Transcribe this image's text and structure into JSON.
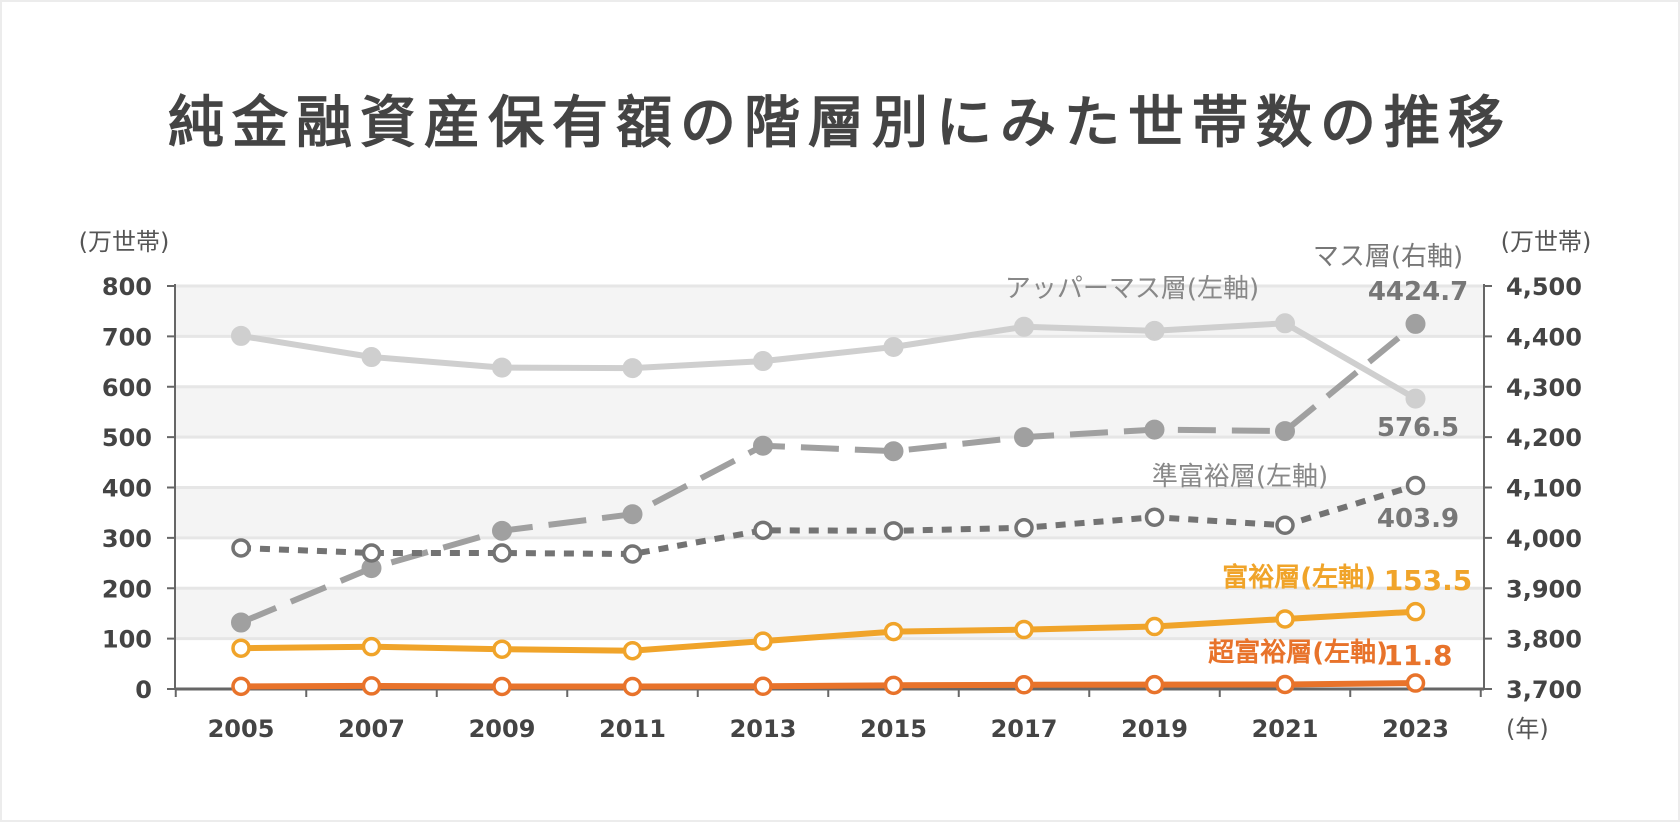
{
  "title": "純金融資産保有額の階層別にみた世帯数の推移",
  "chart_data": {
    "type": "line",
    "title": "純金融資産保有額の階層別にみた世帯数の推移",
    "x": [
      2005,
      2007,
      2009,
      2011,
      2013,
      2015,
      2017,
      2019,
      2021,
      2023
    ],
    "x_tick_labels": [
      "2005",
      "2007",
      "2009",
      "2011",
      "2013",
      "2015",
      "2017",
      "2019",
      "2021",
      "2023"
    ],
    "xlabel": "(年)",
    "left_axis": {
      "unit_label": "(万世帯)",
      "range": [
        0,
        800
      ],
      "ticks": [
        0,
        100,
        200,
        300,
        400,
        500,
        600,
        700,
        800
      ],
      "tick_labels": [
        "0",
        "100",
        "200",
        "300",
        "400",
        "500",
        "600",
        "700",
        "800"
      ]
    },
    "right_axis": {
      "unit_label": "(万世帯)",
      "range": [
        3700,
        4500
      ],
      "ticks": [
        3700,
        3800,
        3900,
        4000,
        4100,
        4200,
        4300,
        4400,
        4500
      ],
      "tick_labels": [
        "3,700",
        "3,800",
        "3,900",
        "4,000",
        "4,100",
        "4,200",
        "4,300",
        "4,400",
        "4,500"
      ]
    },
    "grid": true,
    "series": [
      {
        "name": "アッパーマス層(左軸)",
        "axis": "left",
        "color": "#cfcfcf",
        "style": "solid",
        "marker": "filled",
        "values": [
          701,
          659,
          638,
          637,
          651,
          679,
          719,
          711,
          726,
          576.5
        ],
        "end_label": "576.5"
      },
      {
        "name": "マス層(右軸)",
        "axis": "right",
        "color": "#a0a0a0",
        "style": "dashed",
        "marker": "filled",
        "values": [
          3832,
          3940,
          4014,
          4047,
          4183,
          4172,
          4200,
          4215,
          4212,
          4424.7
        ],
        "end_label": "4424.7"
      },
      {
        "name": "準富裕層(左軸)",
        "axis": "left",
        "color": "#737373",
        "style": "dotted",
        "marker": "hollow",
        "values": [
          280,
          270,
          270,
          268,
          315,
          314,
          320,
          341,
          325,
          403.9
        ],
        "end_label": "403.9"
      },
      {
        "name": "富裕層(左軸)",
        "axis": "left",
        "color": "#f0a42a",
        "style": "solid",
        "marker": "hollow",
        "values": [
          81,
          84,
          79,
          76,
          95,
          114,
          118,
          124,
          139,
          153.5
        ],
        "end_label": "153.5"
      },
      {
        "name": "超富裕層(左軸)",
        "axis": "left",
        "color": "#e8732b",
        "style": "solid",
        "marker": "hollow",
        "values": [
          5.2,
          6.1,
          5.0,
          5.0,
          5.4,
          7.3,
          8.4,
          8.7,
          9.0,
          11.8
        ],
        "end_label": "11.8"
      }
    ]
  }
}
